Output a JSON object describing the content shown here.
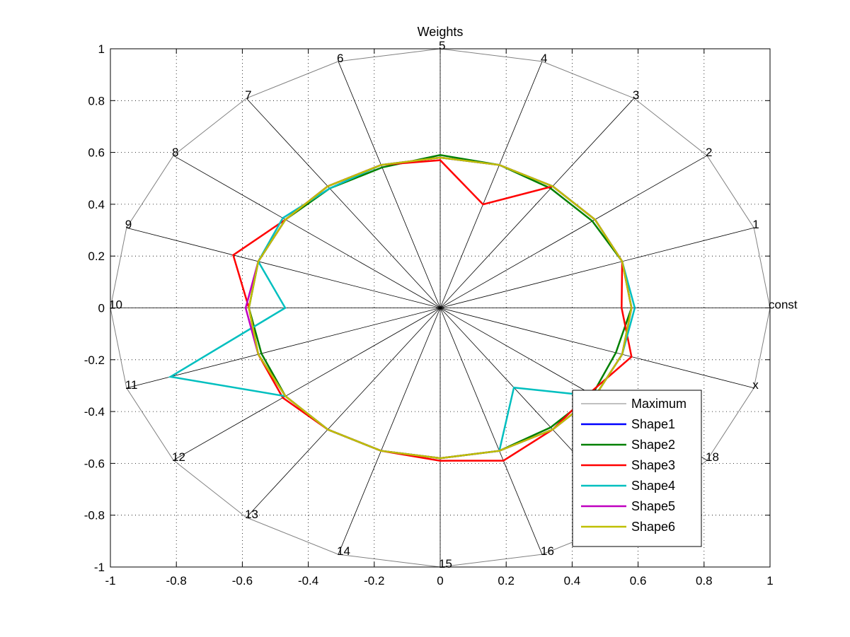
{
  "chart_data": {
    "type": "line",
    "subtype": "radar",
    "title": "Weights",
    "xlabel": "",
    "ylabel": "",
    "xlim": [
      -1,
      1
    ],
    "ylim": [
      -1,
      1
    ],
    "xticks": [
      "-1",
      "-0.8",
      "-0.6",
      "-0.4",
      "-0.2",
      "0",
      "0.2",
      "0.4",
      "0.6",
      "0.8",
      "1"
    ],
    "yticks": [
      "-1",
      "-0.8",
      "-0.6",
      "-0.4",
      "-0.2",
      "0",
      "0.2",
      "0.4",
      "0.6",
      "0.8",
      "1"
    ],
    "grid": true,
    "legend_position": "bottom-right",
    "axes_labels": [
      "const",
      "1",
      "2",
      "3",
      "4",
      "5",
      "6",
      "7",
      "8",
      "9",
      "10",
      "11",
      "12",
      "13",
      "14",
      "15",
      "16",
      "17",
      "18",
      "x"
    ],
    "max_radius": 1,
    "series": [
      {
        "name": "Maximum",
        "color": "#808080",
        "width": 1,
        "values": [
          1,
          1,
          1,
          1,
          1,
          1,
          1,
          1,
          1,
          1,
          1,
          1,
          1,
          1,
          1,
          1,
          1,
          1,
          1,
          1
        ]
      },
      {
        "name": "Shape1",
        "color": "#0000ff",
        "width": 2.5,
        "values": [
          0.58,
          0.58,
          0.58,
          0.58,
          0.58,
          0.58,
          0.58,
          0.58,
          0.58,
          0.58,
          0.58,
          0.58,
          0.58,
          0.58,
          0.58,
          0.58,
          0.58,
          0.58,
          0.58,
          0.58
        ]
      },
      {
        "name": "Shape2",
        "color": "#008000",
        "width": 2.5,
        "values": [
          0.58,
          0.58,
          0.57,
          0.57,
          0.58,
          0.59,
          0.57,
          0.57,
          0.58,
          0.58,
          0.58,
          0.57,
          0.58,
          0.58,
          0.58,
          0.58,
          0.58,
          0.57,
          0.57,
          0.56
        ]
      },
      {
        "name": "Shape3",
        "color": "#ff0000",
        "width": 2.5,
        "values": [
          0.55,
          0.58,
          0.58,
          0.58,
          0.42,
          0.57,
          0.58,
          0.58,
          0.58,
          0.66,
          0.58,
          0.58,
          0.59,
          0.58,
          0.58,
          0.59,
          0.62,
          0.58,
          0.56,
          0.61
        ]
      },
      {
        "name": "Shape4",
        "color": "#00bfbf",
        "width": 2.5,
        "values": [
          0.59,
          0.58,
          0.58,
          0.58,
          0.58,
          0.58,
          0.58,
          0.57,
          0.59,
          0.58,
          0.47,
          0.86,
          0.58,
          0.58,
          0.58,
          0.58,
          0.58,
          0.38,
          0.58,
          0.58
        ]
      },
      {
        "name": "Shape5",
        "color": "#bf00bf",
        "width": 2.5,
        "values": [
          0.58,
          0.58,
          0.58,
          0.58,
          0.58,
          0.58,
          0.58,
          0.58,
          0.58,
          0.58,
          0.59,
          0.58,
          0.58,
          0.58,
          0.58,
          0.58,
          0.58,
          0.58,
          0.58,
          0.58
        ]
      },
      {
        "name": "Shape6",
        "color": "#bfbf00",
        "width": 2.5,
        "values": [
          0.58,
          0.58,
          0.58,
          0.58,
          0.58,
          0.58,
          0.58,
          0.58,
          0.58,
          0.58,
          0.58,
          0.58,
          0.58,
          0.58,
          0.58,
          0.58,
          0.58,
          0.58,
          0.58,
          0.58
        ]
      }
    ]
  }
}
